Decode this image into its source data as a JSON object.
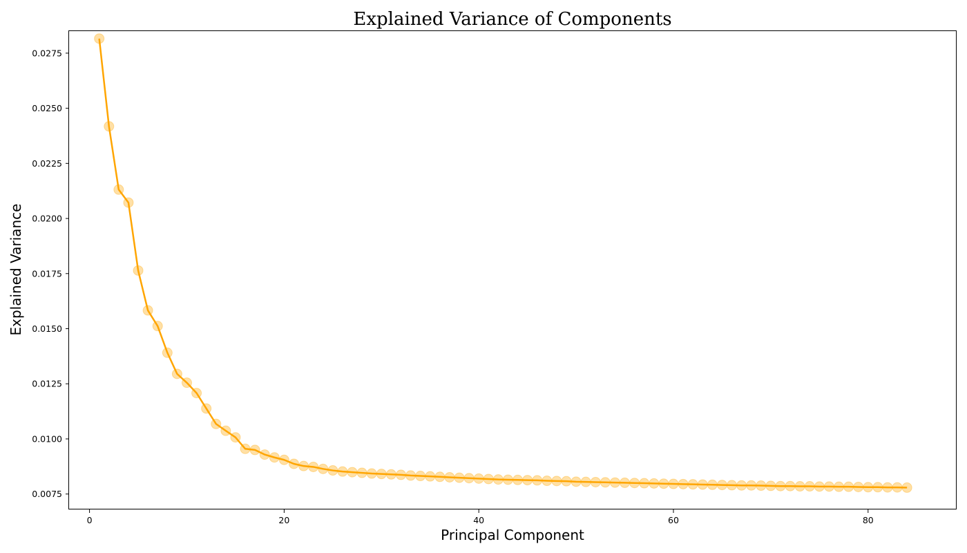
{
  "chart_data": {
    "type": "line",
    "title": "Explained Variance of Components",
    "xlabel": "Principal Component",
    "ylabel": "Explained Variance",
    "xlim": [
      -2.1,
      89.1
    ],
    "ylim": [
      0.0068,
      0.0285
    ],
    "xticks": [
      0,
      20,
      40,
      60,
      80
    ],
    "xtick_labels": [
      "0",
      "20",
      "40",
      "60",
      "80"
    ],
    "yticks": [
      0.0075,
      0.01,
      0.0125,
      0.015,
      0.0175,
      0.02,
      0.0225,
      0.025,
      0.0275
    ],
    "ytick_labels": [
      "0.0075",
      "0.0100",
      "0.0125",
      "0.0150",
      "0.0175",
      "0.0200",
      "0.0225",
      "0.0250",
      "0.0275"
    ],
    "grid": false,
    "line_color": "#FFA500",
    "marker_color": "#FFA500",
    "x": [
      1,
      2,
      3,
      4,
      5,
      6,
      7,
      8,
      9,
      10,
      11,
      12,
      13,
      14,
      15,
      16,
      17,
      18,
      19,
      20,
      21,
      22,
      23,
      24,
      25,
      26,
      27,
      28,
      29,
      30,
      31,
      32,
      33,
      34,
      35,
      36,
      37,
      38,
      39,
      40,
      41,
      42,
      43,
      44,
      45,
      46,
      47,
      48,
      49,
      50,
      51,
      52,
      53,
      54,
      55,
      56,
      57,
      58,
      59,
      60,
      61,
      62,
      63,
      64,
      65,
      66,
      67,
      68,
      69,
      70,
      71,
      72,
      73,
      74,
      75,
      76,
      77,
      78,
      79,
      80,
      81,
      82,
      83,
      84
    ],
    "y": [
      0.02816,
      0.02418,
      0.02131,
      0.02072,
      0.01764,
      0.01583,
      0.01512,
      0.01391,
      0.01295,
      0.01255,
      0.01208,
      0.01138,
      0.01068,
      0.01037,
      0.01007,
      0.00955,
      0.0095,
      0.00929,
      0.00916,
      0.00905,
      0.00887,
      0.00877,
      0.00873,
      0.00864,
      0.00857,
      0.00852,
      0.00849,
      0.00846,
      0.00843,
      0.00841,
      0.00839,
      0.00837,
      0.00834,
      0.00832,
      0.0083,
      0.00828,
      0.00826,
      0.00824,
      0.00822,
      0.0082,
      0.00818,
      0.00816,
      0.00815,
      0.00814,
      0.00813,
      0.00812,
      0.0081,
      0.00809,
      0.00808,
      0.00806,
      0.00805,
      0.00804,
      0.00803,
      0.00802,
      0.00801,
      0.008,
      0.00799,
      0.00798,
      0.00797,
      0.00796,
      0.00795,
      0.00794,
      0.00793,
      0.00792,
      0.00791,
      0.0079,
      0.00789,
      0.00789,
      0.00788,
      0.00787,
      0.00786,
      0.00786,
      0.00785,
      0.00785,
      0.00784,
      0.00784,
      0.00783,
      0.00783,
      0.00782,
      0.00781,
      0.00781,
      0.0078,
      0.0078,
      0.00779
    ]
  }
}
